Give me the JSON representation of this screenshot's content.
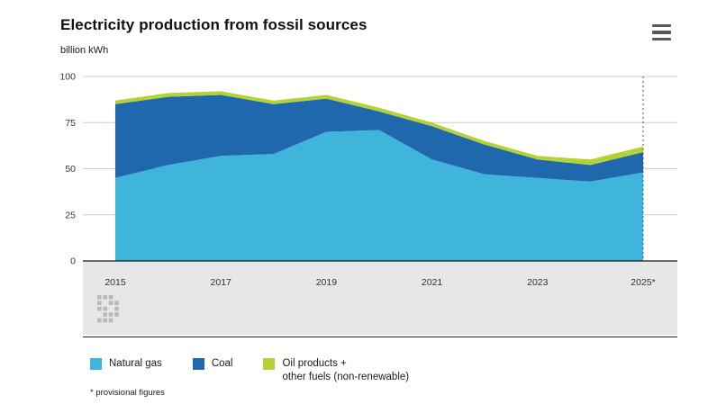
{
  "header": {
    "title": "Electricity production from fossil sources",
    "subtitle": "billion kWh"
  },
  "icons": {
    "menu": "hamburger-menu-icon",
    "watermark": "cbs-logo"
  },
  "chart_data": {
    "type": "area",
    "stacked": true,
    "title": "Electricity production from fossil sources",
    "ylabel": "billion kWh",
    "ylim": [
      0,
      100
    ],
    "y_ticks": [
      0,
      25,
      50,
      75,
      100
    ],
    "x": [
      2015,
      2016,
      2017,
      2018,
      2019,
      2020,
      2021,
      2022,
      2023,
      2024,
      2025
    ],
    "x_tick_years": [
      2015,
      2017,
      2019,
      2021,
      2023,
      2025
    ],
    "x_tick_labels": [
      "2015",
      "2017",
      "2019",
      "2021",
      "2023",
      "2025*"
    ],
    "grid": true,
    "legend_position": "bottom",
    "provisional_last_point": true,
    "series": [
      {
        "name": "Natural gas",
        "color": "#3fb5db",
        "values": [
          45,
          52,
          57,
          58,
          70,
          71,
          55,
          47,
          45,
          43,
          48
        ]
      },
      {
        "name": "Coal",
        "color": "#2068ad",
        "values": [
          40,
          37,
          33,
          27,
          18,
          10,
          18,
          16,
          10,
          9,
          11
        ]
      },
      {
        "name": "Oil products + other fuels (non-renewable)",
        "color": "#b2d235",
        "values": [
          2,
          2,
          2,
          2,
          2,
          2,
          2,
          2,
          2,
          3,
          3
        ]
      }
    ]
  },
  "legend": {
    "items": [
      {
        "label": "Natural gas",
        "color": "#3fb5db"
      },
      {
        "label": "Coal",
        "color": "#2068ad"
      },
      {
        "label": "Oil products +\nother fuels (non-renewable)",
        "color": "#b2d235"
      }
    ]
  },
  "footnote": "* provisional figures"
}
